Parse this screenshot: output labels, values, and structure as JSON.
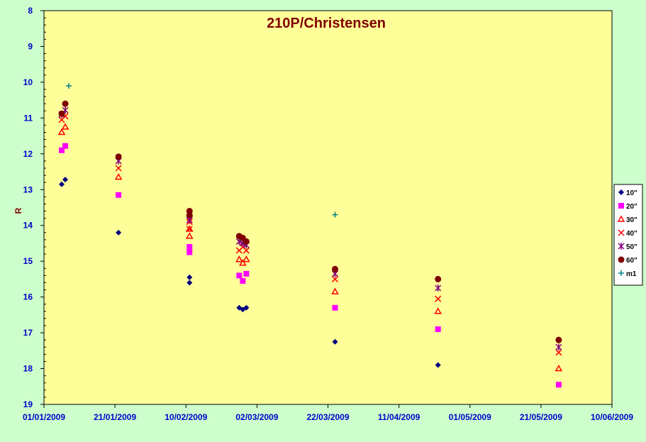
{
  "chart_data": {
    "type": "scatter",
    "title": "210P/Christensen",
    "xlabel": "",
    "ylabel": "R",
    "x_ticks": [
      "01/01/2009",
      "21/01/2009",
      "10/02/2009",
      "02/03/2009",
      "22/03/2009",
      "11/04/2009",
      "01/05/2009",
      "21/05/2009",
      "10/06/2009"
    ],
    "xlim": [
      "2009-01-01",
      "2009-06-10"
    ],
    "ylim": [
      8,
      19
    ],
    "y_inverted": true,
    "y_ticks": [
      "8",
      "9",
      "10",
      "11",
      "12",
      "13",
      "14",
      "15",
      "16",
      "17",
      "18",
      "19"
    ],
    "grid": false,
    "legend_position": "right",
    "background": "#ffff99",
    "series": [
      {
        "name": "10\"",
        "color": "#000080",
        "marker": "diamond",
        "x": [
          "2009-01-06",
          "2009-01-07",
          "2009-01-22",
          "2009-02-11",
          "2009-02-11",
          "2009-02-25",
          "2009-02-26",
          "2009-02-27",
          "2009-03-24",
          "2009-04-22"
        ],
        "y": [
          12.85,
          12.72,
          14.2,
          15.45,
          15.6,
          16.3,
          16.35,
          16.3,
          17.25,
          17.9
        ]
      },
      {
        "name": "20\"",
        "color": "#ff00ff",
        "marker": "square",
        "x": [
          "2009-01-06",
          "2009-01-07",
          "2009-01-22",
          "2009-02-11",
          "2009-02-11",
          "2009-02-25",
          "2009-02-26",
          "2009-02-27",
          "2009-03-24",
          "2009-04-22",
          "2009-05-26"
        ],
        "y": [
          11.9,
          11.78,
          13.15,
          14.6,
          14.75,
          15.4,
          15.55,
          15.35,
          16.3,
          16.9,
          18.45
        ]
      },
      {
        "name": "30\"",
        "color": "#ff0000",
        "marker": "triangle",
        "x": [
          "2009-01-06",
          "2009-01-07",
          "2009-01-22",
          "2009-02-11",
          "2009-02-11",
          "2009-02-25",
          "2009-02-26",
          "2009-02-27",
          "2009-03-24",
          "2009-04-22",
          "2009-05-26"
        ],
        "y": [
          11.4,
          11.25,
          12.65,
          14.1,
          14.3,
          14.95,
          15.05,
          14.95,
          15.85,
          16.4,
          18.0
        ]
      },
      {
        "name": "40\"",
        "color": "#ff0000",
        "marker": "x",
        "x": [
          "2009-01-06",
          "2009-01-07",
          "2009-01-22",
          "2009-02-11",
          "2009-02-11",
          "2009-02-25",
          "2009-02-26",
          "2009-02-27",
          "2009-03-24",
          "2009-04-22",
          "2009-05-26"
        ],
        "y": [
          11.05,
          10.95,
          12.4,
          13.9,
          14.1,
          14.7,
          14.6,
          14.7,
          15.5,
          16.05,
          17.55
        ]
      },
      {
        "name": "50\"",
        "color": "#800080",
        "marker": "star",
        "x": [
          "2009-01-06",
          "2009-01-07",
          "2009-01-22",
          "2009-02-11",
          "2009-02-11",
          "2009-02-25",
          "2009-02-26",
          "2009-02-27",
          "2009-03-24",
          "2009-04-22",
          "2009-05-26"
        ],
        "y": [
          10.9,
          10.78,
          12.2,
          13.7,
          13.85,
          14.45,
          14.5,
          14.55,
          15.35,
          15.75,
          17.4
        ]
      },
      {
        "name": "60\"",
        "color": "#800000",
        "marker": "circle",
        "x": [
          "2009-01-06",
          "2009-01-07",
          "2009-01-22",
          "2009-02-11",
          "2009-02-11",
          "2009-02-25",
          "2009-02-26",
          "2009-02-27",
          "2009-03-24",
          "2009-04-22",
          "2009-05-26"
        ],
        "y": [
          10.88,
          10.6,
          12.08,
          13.6,
          13.72,
          14.3,
          14.35,
          14.45,
          15.22,
          15.5,
          17.2
        ]
      },
      {
        "name": "m1",
        "color": "#008080",
        "marker": "plus",
        "x": [
          "2009-01-08",
          "2009-03-24"
        ],
        "y": [
          10.1,
          13.7
        ]
      }
    ]
  }
}
